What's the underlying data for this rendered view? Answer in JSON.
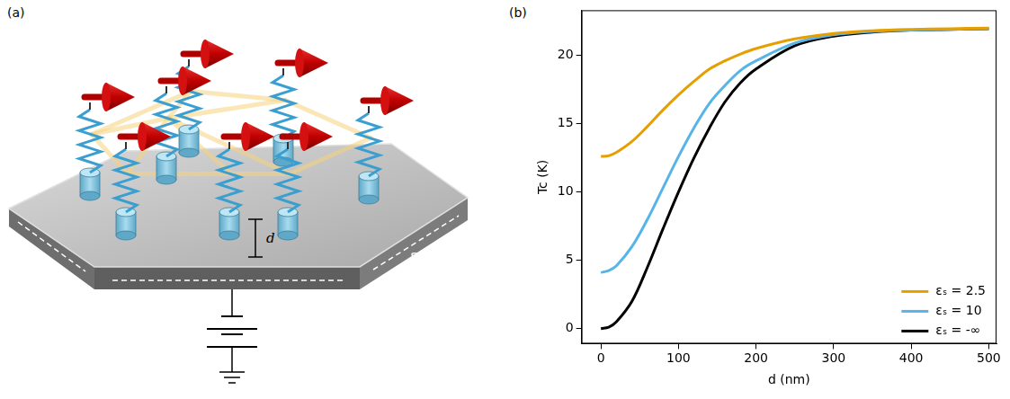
{
  "diagram": {
    "panel_label": "(a)",
    "distance_label": "d",
    "substrate_label": "εₛ"
  },
  "chart_data": {
    "type": "line",
    "panel_label": "(b)",
    "x_label": "d (nm)",
    "y_label": "Tc (K)",
    "x": [
      0,
      10,
      20,
      40,
      60,
      80,
      100,
      120,
      140,
      160,
      180,
      200,
      250,
      300,
      350,
      400,
      450,
      500
    ],
    "series": [
      {
        "name": "εₛ = 2.5",
        "color": "#e69f00",
        "values": [
          12.6,
          12.65,
          12.9,
          13.7,
          14.8,
          16.0,
          17.1,
          18.1,
          19.0,
          19.6,
          20.1,
          20.5,
          21.2,
          21.6,
          21.8,
          21.9,
          21.95,
          22.0
        ]
      },
      {
        "name": "εₛ = 10",
        "color": "#56b4e9",
        "values": [
          4.1,
          4.25,
          4.6,
          6.0,
          8.0,
          10.3,
          12.6,
          14.7,
          16.5,
          17.8,
          18.9,
          19.6,
          20.9,
          21.5,
          21.75,
          21.85,
          21.9,
          21.95
        ]
      },
      {
        "name": "εₛ = -∞",
        "color": "#000000",
        "values": [
          0.0,
          0.1,
          0.5,
          2.0,
          4.5,
          7.3,
          10.0,
          12.5,
          14.7,
          16.6,
          18.0,
          19.0,
          20.7,
          21.4,
          21.7,
          21.85,
          21.9,
          21.95
        ]
      }
    ],
    "xlim": [
      -25,
      510
    ],
    "ylim": [
      -1.1,
      23.3
    ],
    "xticks": [
      0,
      100,
      200,
      300,
      400,
      500
    ],
    "yticks": [
      0,
      5,
      10,
      15,
      20
    ],
    "grid": false,
    "legend": "lower right"
  }
}
